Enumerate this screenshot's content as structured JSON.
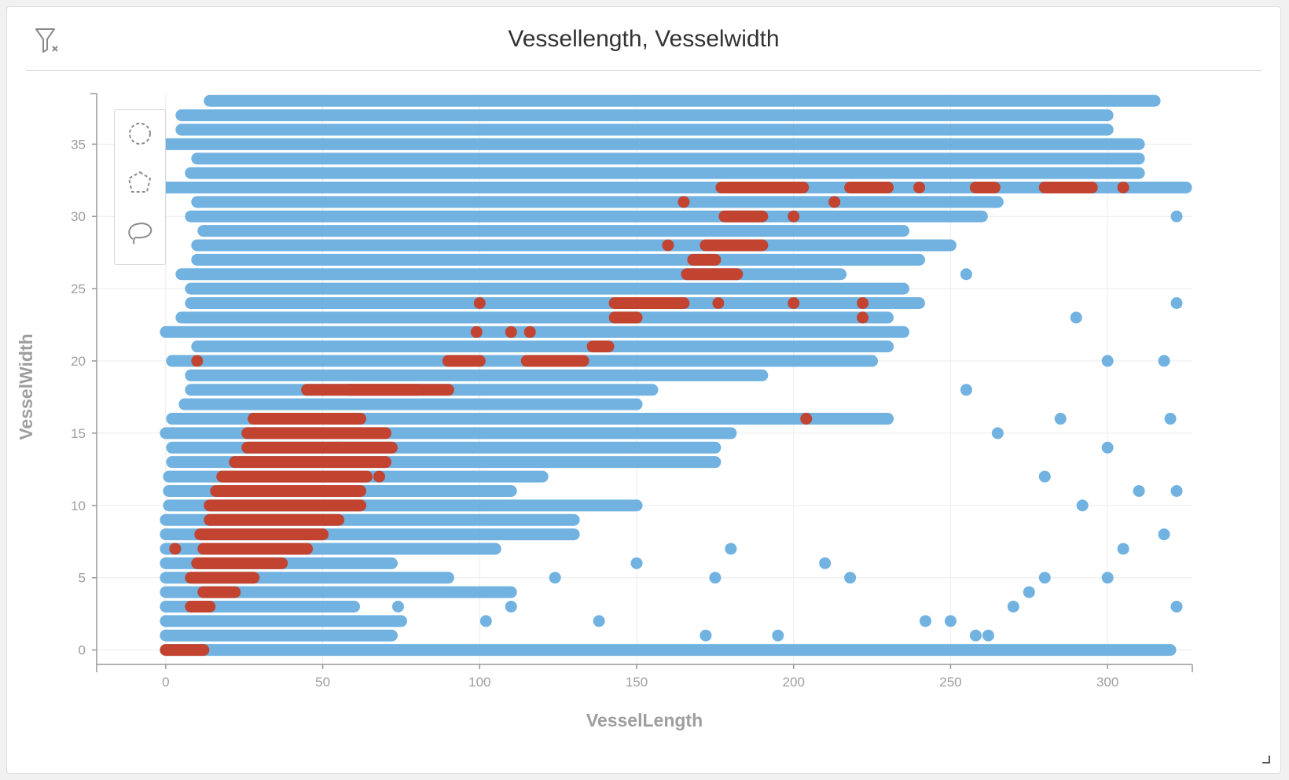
{
  "title": "Vessellength, Vesselwidth",
  "icons": {
    "filter_clear": "filter-clear-icon",
    "circle_select": "circle-select-icon",
    "polygon_select": "polygon-select-icon",
    "lasso_select": "lasso-select-icon",
    "resize": "resize-handle-icon"
  },
  "colors": {
    "blue": "#6aaee0",
    "red": "#c83a22",
    "axis": "#999999",
    "grid": "#ececec",
    "label": "#9e9e9e"
  },
  "chart_data": {
    "type": "scatter",
    "title": "Vessellength, Vesselwidth",
    "xlabel": "VesselLength",
    "ylabel": "VesselWidth",
    "xlim": [
      -22,
      327
    ],
    "ylim": [
      -1,
      38.5
    ],
    "x_ticks": [
      0,
      50,
      100,
      150,
      200,
      250,
      300
    ],
    "y_ticks": [
      0,
      5,
      10,
      15,
      20,
      25,
      30,
      35
    ],
    "grid": true,
    "series": [
      {
        "color": "#6aaee0",
        "segments": [
          [
            0,
            0,
            320
          ],
          [
            0,
            1,
            72
          ],
          [
            0,
            2,
            75
          ],
          [
            0,
            3,
            60
          ],
          [
            0,
            4,
            110
          ],
          [
            0,
            5,
            90
          ],
          [
            0,
            6,
            72
          ],
          [
            0,
            7,
            105
          ],
          [
            0,
            8,
            130
          ],
          [
            0,
            9,
            130
          ],
          [
            1,
            10,
            150
          ],
          [
            1,
            11,
            110
          ],
          [
            1,
            12,
            120
          ],
          [
            2,
            13,
            175
          ],
          [
            2,
            14,
            175
          ],
          [
            0,
            15,
            180
          ],
          [
            2,
            16,
            230
          ],
          [
            6,
            17,
            150
          ],
          [
            8,
            18,
            155
          ],
          [
            8,
            19,
            190
          ],
          [
            2,
            20,
            225
          ],
          [
            10,
            21,
            230
          ],
          [
            0,
            22,
            235
          ],
          [
            5,
            23,
            230
          ],
          [
            8,
            24,
            240
          ],
          [
            8,
            25,
            235
          ],
          [
            5,
            26,
            215
          ],
          [
            10,
            27,
            240
          ],
          [
            10,
            28,
            250
          ],
          [
            12,
            29,
            235
          ],
          [
            8,
            30,
            260
          ],
          [
            10,
            31,
            265
          ],
          [
            0,
            32,
            325
          ],
          [
            8,
            33,
            310
          ],
          [
            10,
            34,
            310
          ],
          [
            0,
            35,
            310
          ],
          [
            5,
            36,
            300
          ],
          [
            5,
            37,
            300
          ],
          [
            14,
            38,
            315
          ]
        ],
        "points": [
          [
            102,
            2
          ],
          [
            138,
            2
          ],
          [
            172,
            1
          ],
          [
            195,
            1
          ],
          [
            242,
            2
          ],
          [
            250,
            2
          ],
          [
            258,
            1
          ],
          [
            262,
            1
          ],
          [
            270,
            3
          ],
          [
            275,
            4
          ],
          [
            280,
            5
          ],
          [
            300,
            5
          ],
          [
            322,
            3
          ],
          [
            305,
            7
          ],
          [
            318,
            8
          ],
          [
            292,
            10
          ],
          [
            310,
            11
          ],
          [
            322,
            11
          ],
          [
            280,
            12
          ],
          [
            300,
            14
          ],
          [
            265,
            15
          ],
          [
            285,
            16
          ],
          [
            320,
            16
          ],
          [
            255,
            18
          ],
          [
            300,
            20
          ],
          [
            318,
            20
          ],
          [
            290,
            23
          ],
          [
            322,
            24
          ],
          [
            255,
            26
          ],
          [
            322,
            30
          ],
          [
            218,
            5
          ],
          [
            175,
            5
          ],
          [
            210,
            6
          ],
          [
            180,
            7
          ],
          [
            150,
            6
          ],
          [
            124,
            5
          ],
          [
            110,
            3
          ],
          [
            74,
            3
          ]
        ]
      },
      {
        "color": "#c83a22",
        "segments": [
          [
            0,
            0,
            12
          ],
          [
            8,
            3,
            14
          ],
          [
            12,
            4,
            22
          ],
          [
            8,
            5,
            28
          ],
          [
            10,
            6,
            37
          ],
          [
            12,
            7,
            45
          ],
          [
            11,
            8,
            50
          ],
          [
            14,
            9,
            55
          ],
          [
            14,
            10,
            62
          ],
          [
            16,
            11,
            62
          ],
          [
            18,
            12,
            64
          ],
          [
            22,
            13,
            70
          ],
          [
            26,
            14,
            72
          ],
          [
            26,
            15,
            70
          ],
          [
            28,
            16,
            62
          ],
          [
            45,
            16,
            52
          ],
          [
            45,
            18,
            90
          ],
          [
            58,
            18,
            80
          ],
          [
            90,
            20,
            100
          ],
          [
            115,
            20,
            133
          ],
          [
            177,
            32,
            200
          ],
          [
            195,
            32,
            203
          ],
          [
            218,
            32,
            230
          ],
          [
            178,
            30,
            190
          ],
          [
            172,
            28,
            190
          ],
          [
            168,
            27,
            175
          ],
          [
            166,
            26,
            182
          ],
          [
            143,
            24,
            165
          ],
          [
            143,
            23,
            150
          ],
          [
            136,
            21,
            141
          ],
          [
            280,
            32,
            295
          ],
          [
            258,
            32,
            264
          ]
        ],
        "points": [
          [
            3,
            7
          ],
          [
            10,
            20
          ],
          [
            28,
            16
          ],
          [
            68,
            12
          ],
          [
            55,
            14
          ],
          [
            50,
            18
          ],
          [
            110,
            22
          ],
          [
            99,
            22
          ],
          [
            116,
            22
          ],
          [
            100,
            24
          ],
          [
            213,
            31
          ],
          [
            200,
            30
          ],
          [
            200,
            24
          ],
          [
            222,
            23
          ],
          [
            222,
            24
          ],
          [
            160,
            28
          ],
          [
            176,
            24
          ],
          [
            204,
            16
          ],
          [
            240,
            32
          ],
          [
            305,
            32
          ],
          [
            165,
            31
          ]
        ]
      }
    ]
  }
}
